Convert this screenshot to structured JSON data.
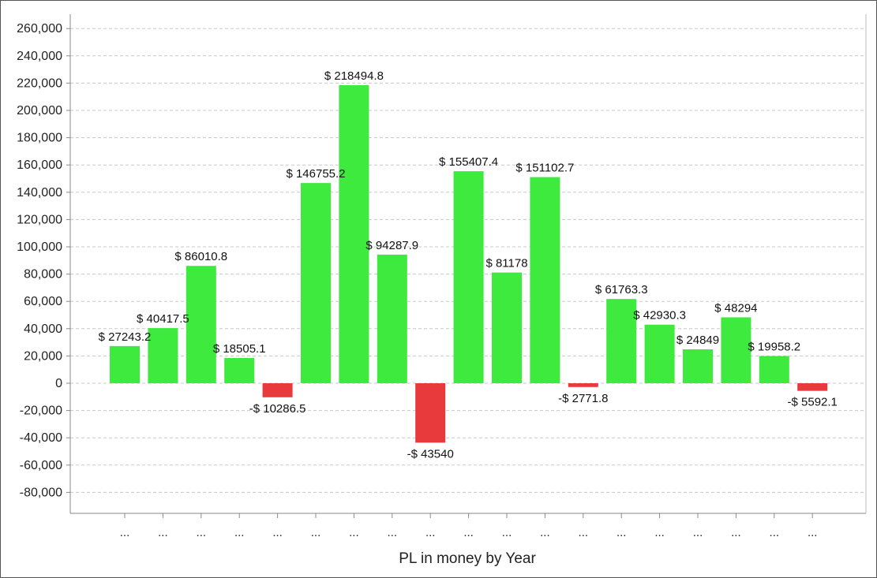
{
  "chart_data": {
    "type": "bar",
    "title": "",
    "xlabel": "PL in money by Year",
    "ylabel": "",
    "ylim": [
      -80000,
      260000
    ],
    "yticks": [
      -80000,
      -60000,
      -40000,
      -20000,
      0,
      20000,
      40000,
      60000,
      80000,
      100000,
      120000,
      140000,
      160000,
      180000,
      200000,
      220000,
      240000,
      260000
    ],
    "ytick_labels": [
      "-80,000",
      "-60,000",
      "-40,000",
      "-20,000",
      "0",
      "20,000",
      "40,000",
      "60,000",
      "80,000",
      "100,000",
      "120,000",
      "140,000",
      "160,000",
      "180,000",
      "200,000",
      "220,000",
      "240,000",
      "260,000"
    ],
    "grid": true,
    "categories": [
      "...",
      "...",
      "...",
      "...",
      "...",
      "...",
      "...",
      "...",
      "...",
      "...",
      "...",
      "...",
      "...",
      "...",
      "...",
      "...",
      "...",
      "...",
      "..."
    ],
    "values": [
      27243.2,
      40417.5,
      86010.8,
      18505.1,
      -10286.5,
      146755.2,
      218494.8,
      94287.9,
      -43540,
      155407.4,
      81178,
      151102.7,
      -2771.8,
      61763.3,
      42930.3,
      24849,
      48294,
      19958.2,
      -5592.1
    ],
    "data_labels": [
      "$ 27243.2",
      "$ 40417.5",
      "$ 86010.8",
      "$ 18505.1",
      "-$ 10286.5",
      "$ 146755.2",
      "$ 218494.8",
      "$ 94287.9",
      "-$ 43540",
      "$ 155407.4",
      "$ 81178",
      "$ 151102.7",
      "-$ 2771.8",
      "$ 61763.3",
      "$ 42930.3",
      "$ 24849",
      "$ 48294",
      "$ 19958.2",
      "-$ 5592.1"
    ],
    "colors": {
      "positive": "#3dea3d",
      "negative": "#e8393d",
      "grid": "#c8c8c8",
      "axis": "#888888"
    }
  }
}
